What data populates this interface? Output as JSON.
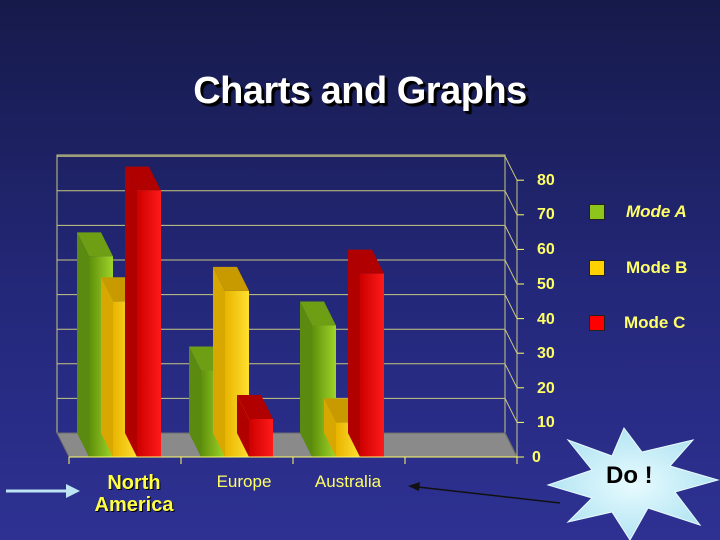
{
  "slide": {
    "title": "Charts and Graphs",
    "callout_text": "Do !"
  },
  "colors": {
    "background": "#24287a",
    "mode_a": "#8dc51a",
    "mode_b": "#ffd200",
    "mode_c": "#ff0000",
    "text": "#ffff66",
    "callout": "#c8f0f8"
  },
  "chart_data": {
    "type": "bar",
    "style": "3d-clustered",
    "categories": [
      "North\nAmerica",
      "Europe",
      "Australia"
    ],
    "series": [
      {
        "name": "Mode A",
        "values": [
          58,
          25,
          38
        ]
      },
      {
        "name": "Mode B",
        "values": [
          45,
          48,
          10
        ]
      },
      {
        "name": "Mode C",
        "values": [
          77,
          11,
          53
        ]
      }
    ],
    "ylim": [
      0,
      80
    ],
    "yticks": [
      "0",
      "10",
      "20",
      "30",
      "40",
      "50",
      "60",
      "70",
      "80"
    ],
    "grid": true,
    "y_axis_side": "right",
    "legend_position": "right"
  }
}
